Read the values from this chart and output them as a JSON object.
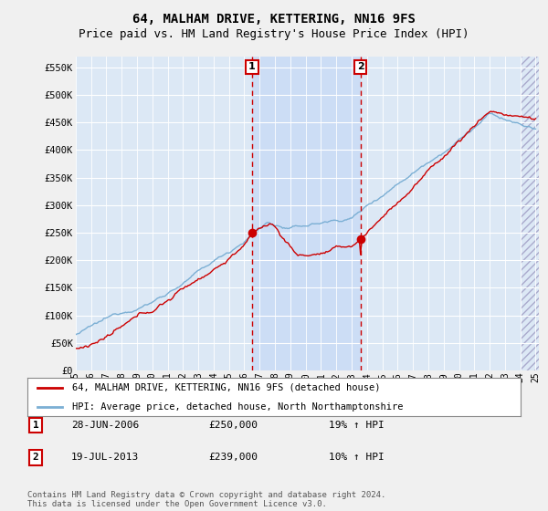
{
  "title": "64, MALHAM DRIVE, KETTERING, NN16 9FS",
  "subtitle": "Price paid vs. HM Land Registry's House Price Index (HPI)",
  "ylabel_ticks": [
    "£0",
    "£50K",
    "£100K",
    "£150K",
    "£200K",
    "£250K",
    "£300K",
    "£350K",
    "£400K",
    "£450K",
    "£500K",
    "£550K"
  ],
  "ytick_values": [
    0,
    50000,
    100000,
    150000,
    200000,
    250000,
    300000,
    350000,
    400000,
    450000,
    500000,
    550000
  ],
  "ylim": [
    0,
    570000
  ],
  "x_start_year": 1995,
  "x_end_year": 2025,
  "fig_bg_color": "#f0f0f0",
  "plot_bg_color": "#dce8f5",
  "grid_color": "#ffffff",
  "highlight_color": "#ccddf5",
  "sale1_year": 2006.5,
  "sale2_year": 2013.583,
  "sale1_price": 250000,
  "sale2_price": 239000,
  "sale1_date": "28-JUN-2006",
  "sale2_date": "19-JUL-2013",
  "sale1_hpi_pct": "19%",
  "sale2_hpi_pct": "10%",
  "legend_label1": "64, MALHAM DRIVE, KETTERING, NN16 9FS (detached house)",
  "legend_label2": "HPI: Average price, detached house, North Northamptonshire",
  "footer": "Contains HM Land Registry data © Crown copyright and database right 2024.\nThis data is licensed under the Open Government Licence v3.0.",
  "line1_color": "#cc0000",
  "line2_color": "#7bafd4",
  "vline_color": "#cc0000",
  "title_fontsize": 10,
  "subtitle_fontsize": 9
}
